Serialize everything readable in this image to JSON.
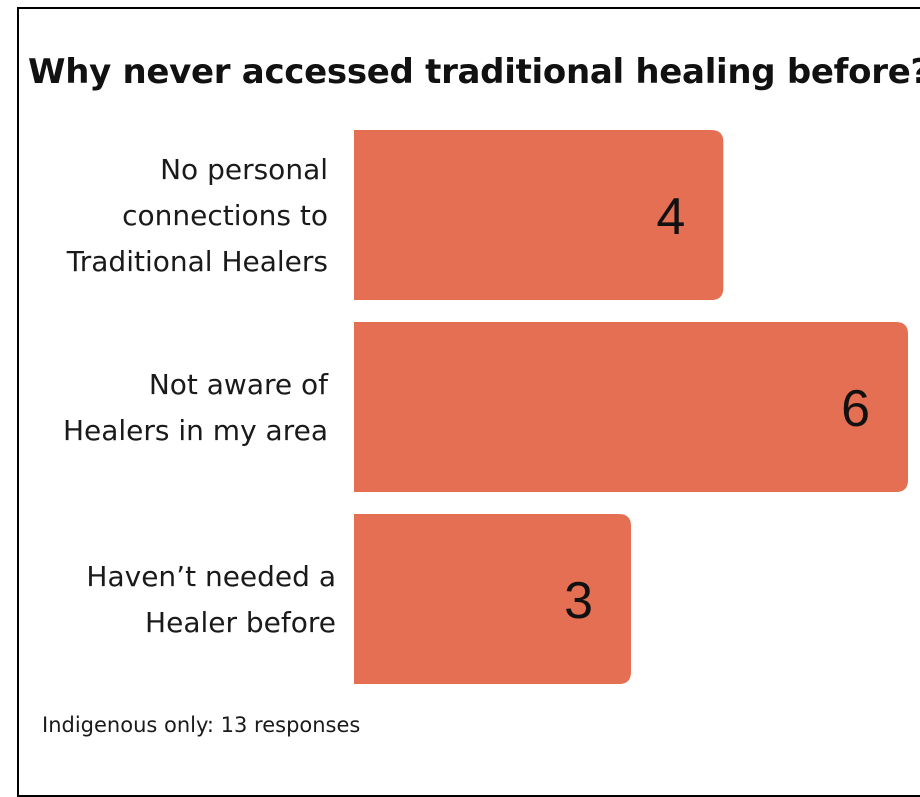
{
  "title": "Why never accessed traditional healing before?",
  "footnote": "Indigenous only: 13 responses",
  "colors": {
    "bar": "#E56F52",
    "text": "#1a1a1a",
    "frame": "#000000"
  },
  "chart_data": {
    "type": "bar",
    "orientation": "horizontal",
    "title": "Why never accessed traditional healing before?",
    "categories": [
      "No personal connections to Traditional Healers",
      "Not aware of Healers in my area",
      "Haven’t needed a Healer before"
    ],
    "category_lines": [
      [
        "No personal",
        "connections to",
        "Traditional Healers"
      ],
      [
        "Not aware of",
        "Healers in my area"
      ],
      [
        "Haven’t needed a",
        "Healer before"
      ]
    ],
    "values": [
      4,
      6,
      3
    ],
    "xlim": [
      0,
      6
    ],
    "grid": false,
    "data_labels": true
  }
}
